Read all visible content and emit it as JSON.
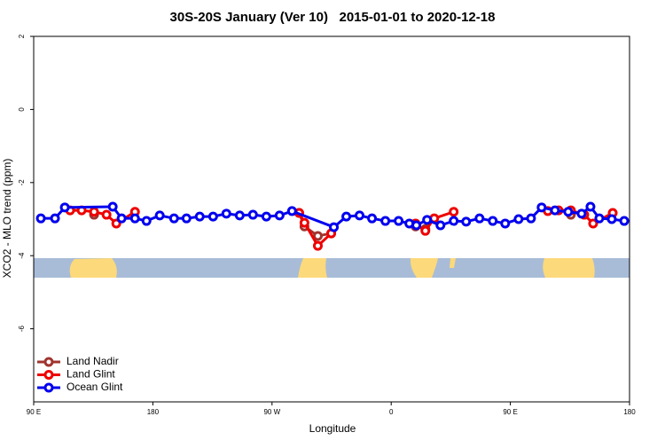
{
  "chart_data": {
    "type": "line",
    "title": "30S-20S January (Ver 10)   2015-01-01 to 2020-12-18",
    "xlabel": "Longitude",
    "ylabel": "XCO2 - MLO trend (ppm)",
    "xlim": [
      90,
      540
    ],
    "xticks": [
      {
        "value": 90,
        "label": "90 E"
      },
      180,
      {
        "value": 270,
        "label": "90 W"
      },
      {
        "value": 360,
        "label": "0"
      },
      {
        "value": 450,
        "label": "90 E"
      },
      {
        "value": 540,
        "label": "180"
      }
    ],
    "ylim": [
      -8,
      2
    ],
    "yticks": [
      -6,
      -4,
      -2,
      0,
      2
    ],
    "legend": "bottom-left",
    "series": [
      {
        "name": "Land Nadir",
        "color": "#a0342f",
        "x": [
          135.6,
          null,
          290.5,
          294.5,
          304.6,
          314.7,
          null,
          378.4,
          385.8,
          null,
          495.7
        ],
        "values": [
          -2.88,
          null,
          -2.83,
          -3.2,
          -3.46,
          -3.39,
          null,
          -3.2,
          -3.27,
          null,
          -2.88
        ]
      },
      {
        "name": "Land Glint",
        "color": "#ee0000",
        "x": [
          117.5,
          126.2,
          135.6,
          145,
          152.4,
          166.5,
          null,
          290.5,
          294.5,
          304.6,
          314.7,
          null,
          378.4,
          385.8,
          392.5,
          407.2,
          null,
          478.3,
          486.4,
          495.7,
          505.8,
          512.5,
          527.3
        ],
        "values": [
          -2.76,
          -2.76,
          -2.8,
          -2.88,
          -3.12,
          -2.8,
          null,
          -2.83,
          -3.1,
          -3.73,
          -3.39,
          null,
          -3.12,
          -3.32,
          -2.98,
          -2.8,
          null,
          -2.78,
          -2.76,
          -2.76,
          -2.88,
          -3.12,
          -2.83
        ]
      },
      {
        "name": "Ocean Glint",
        "color": "#0000ee",
        "x": [
          95.4,
          106.1,
          113.5,
          149.7,
          156.4,
          166.5,
          175.2,
          185.2,
          196,
          205.4,
          215.4,
          225.5,
          235.5,
          245.6,
          255.6,
          265.7,
          275.7,
          285.1,
          316.7,
          326.1,
          336.1,
          345.5,
          355.6,
          365.6,
          373.7,
          379,
          387.1,
          397.2,
          407.2,
          416.6,
          426.7,
          436.7,
          446.1,
          456.2,
          465.6,
          473.6,
          483.7,
          493.7,
          503.8,
          510.5,
          517.2,
          526.6,
          536
        ],
        "values": [
          -2.98,
          -2.98,
          -2.68,
          -2.66,
          -2.98,
          -2.98,
          -3.05,
          -2.9,
          -2.98,
          -2.98,
          -2.93,
          -2.93,
          -2.85,
          -2.9,
          -2.88,
          -2.93,
          -2.9,
          -2.78,
          -3.22,
          -2.93,
          -2.9,
          -2.98,
          -3.05,
          -3.05,
          -3.12,
          -3.17,
          -3.02,
          -3.17,
          -3.05,
          -3.07,
          -2.98,
          -3.05,
          -3.12,
          -3.0,
          -2.98,
          -2.68,
          -2.76,
          -2.8,
          -2.85,
          -2.66,
          -2.98,
          -3.0,
          -3.05
        ]
      }
    ]
  }
}
